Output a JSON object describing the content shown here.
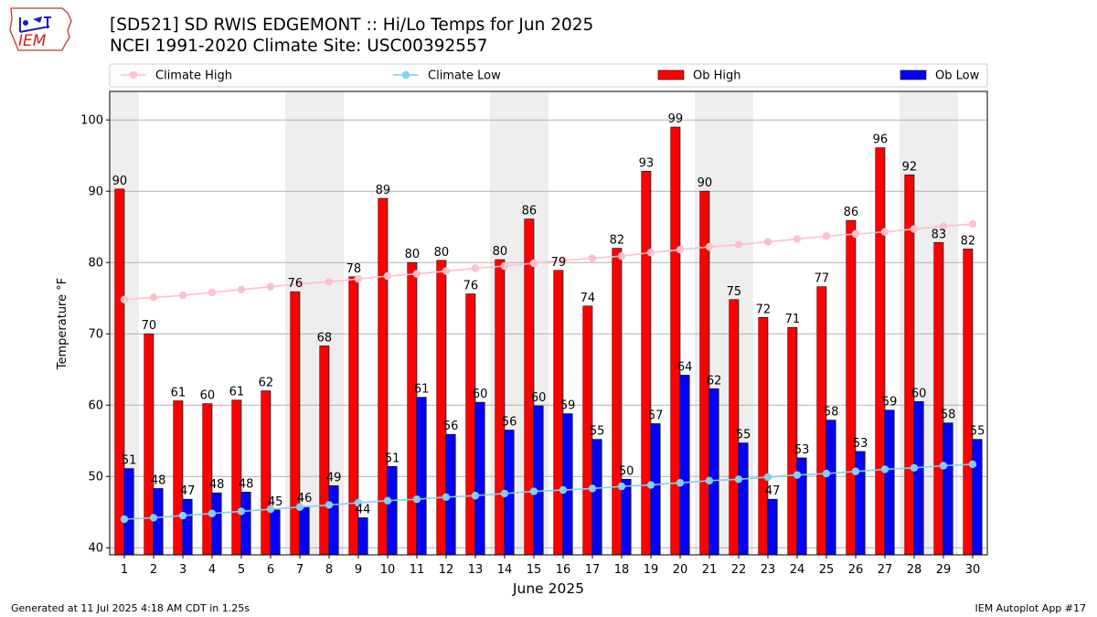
{
  "header": {
    "logo_text": "IEM",
    "title_line1": "[SD521] SD RWIS EDGEMONT :: Hi/Lo Temps for Jun 2025",
    "title_line2": "NCEI 1991-2020 Climate Site: USC00392557"
  },
  "footer": {
    "generated": "Generated at 11 Jul 2025 4:18 AM CDT in 1.25s",
    "app": "IEM Autoplot App #17"
  },
  "colors": {
    "ob_high": "#ff0000",
    "ob_low": "#0000ff",
    "climate_high": "#ffc0cb",
    "climate_low": "#87ceeb",
    "weekend_shade": "#eeeeee"
  },
  "chart_data": {
    "type": "bar",
    "xlabel": "June 2025",
    "ylabel": "Temperature °F",
    "ylim": [
      39,
      104
    ],
    "yticks": [
      40,
      50,
      60,
      70,
      80,
      90,
      100
    ],
    "grid": "horizontal",
    "legend_position": "top",
    "categories": [
      "1",
      "2",
      "3",
      "4",
      "5",
      "6",
      "7",
      "8",
      "9",
      "10",
      "11",
      "12",
      "13",
      "14",
      "15",
      "16",
      "17",
      "18",
      "19",
      "20",
      "21",
      "22",
      "23",
      "24",
      "25",
      "26",
      "27",
      "28",
      "29",
      "30"
    ],
    "shaded_days": [
      "1",
      "7",
      "8",
      "14",
      "15",
      "21",
      "22",
      "28",
      "29"
    ],
    "series": [
      {
        "name": "Ob High",
        "kind": "bar",
        "color": "#ff0000",
        "values": [
          90.3,
          70,
          60.6,
          60.2,
          60.7,
          62,
          75.9,
          68.3,
          78,
          89,
          80,
          80.3,
          75.6,
          80.4,
          86.1,
          78.9,
          73.9,
          82,
          92.8,
          99,
          90,
          74.8,
          72.3,
          70.9,
          76.6,
          85.9,
          96.1,
          92.3,
          82.8,
          81.9
        ],
        "labels": [
          90,
          70,
          61,
          60,
          61,
          62,
          76,
          68,
          78,
          89,
          80,
          80,
          76,
          80,
          86,
          79,
          74,
          82,
          93,
          99,
          90,
          75,
          72,
          71,
          77,
          86,
          96,
          92,
          83,
          82
        ]
      },
      {
        "name": "Ob Low",
        "kind": "bar",
        "color": "#0000ff",
        "values": [
          51.1,
          48.3,
          46.8,
          47.7,
          47.8,
          45.3,
          45.8,
          48.7,
          44.2,
          51.4,
          61.1,
          55.9,
          60.4,
          56.5,
          59.9,
          58.8,
          55.2,
          49.6,
          57.4,
          64.2,
          62.3,
          54.7,
          46.8,
          52.6,
          57.9,
          53.5,
          59.3,
          60.5,
          57.5,
          55.2
        ],
        "labels": [
          51,
          48,
          47,
          48,
          48,
          45,
          46,
          49,
          44,
          51,
          61,
          56,
          60,
          56,
          60,
          59,
          55,
          50,
          57,
          64,
          62,
          55,
          47,
          53,
          58,
          53,
          59,
          60,
          58,
          55
        ]
      },
      {
        "name": "Climate High",
        "kind": "line",
        "color": "#ffc0cb",
        "values": [
          74.8,
          75.1,
          75.4,
          75.8,
          76.2,
          76.6,
          77,
          77.3,
          77.7,
          78.1,
          78.4,
          78.8,
          79.2,
          79.5,
          79.9,
          80.3,
          80.6,
          80.9,
          81.4,
          81.8,
          82.2,
          82.5,
          82.9,
          83.3,
          83.7,
          84,
          84.3,
          84.7,
          85.1,
          85.4
        ]
      },
      {
        "name": "Climate Low",
        "kind": "line",
        "color": "#87ceeb",
        "values": [
          44,
          44.2,
          44.5,
          44.8,
          45.1,
          45.4,
          45.7,
          46,
          46.3,
          46.6,
          46.8,
          47.1,
          47.3,
          47.6,
          47.9,
          48.1,
          48.3,
          48.6,
          48.8,
          49.1,
          49.4,
          49.6,
          49.9,
          50.2,
          50.4,
          50.7,
          51,
          51.2,
          51.5,
          51.7
        ]
      }
    ]
  }
}
